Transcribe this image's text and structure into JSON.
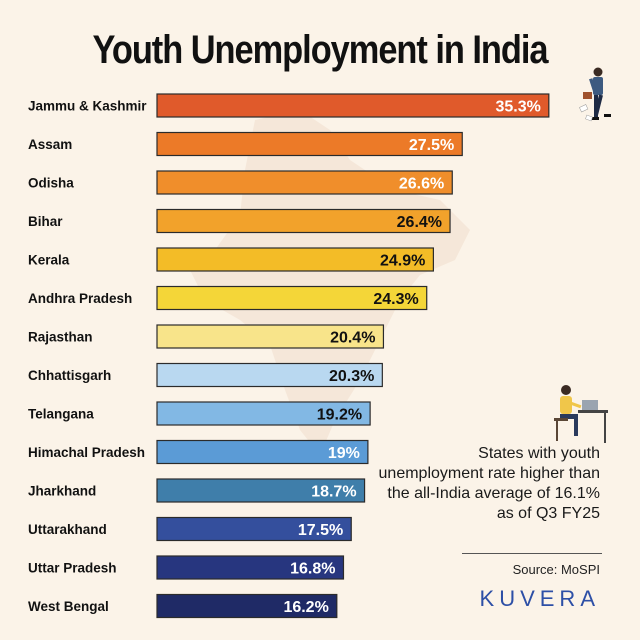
{
  "title": "Youth Unemployment in India",
  "note": "States with youth unemployment rate higher than the all-India average of 16.1% as of Q3 FY25",
  "source": "Source: MoSPI",
  "brand": "KUVERA",
  "colors": {
    "background": "#fbf3e8",
    "brand": "#2d4fa6",
    "bar_outline": "#2b2b2b"
  },
  "chart_data": {
    "type": "bar",
    "orientation": "horizontal",
    "title": "Youth Unemployment in India",
    "xlabel": "",
    "ylabel": "",
    "xlim": [
      0,
      36
    ],
    "grid": false,
    "legend": "none",
    "value_suffix": "%",
    "categories": [
      "Jammu & Kashmir",
      "Assam",
      "Odisha",
      "Bihar",
      "Kerala",
      "Andhra Pradesh",
      "Rajasthan",
      "Chhattisgarh",
      "Telangana",
      "Himachal Pradesh",
      "Jharkhand",
      "Uttarakhand",
      "Uttar Pradesh",
      "West Bengal"
    ],
    "values": [
      35.3,
      27.5,
      26.6,
      26.4,
      24.9,
      24.3,
      20.4,
      20.3,
      19.2,
      19,
      18.7,
      17.5,
      16.8,
      16.2
    ],
    "value_labels": [
      "35.3%",
      "27.5%",
      "26.6%",
      "26.4%",
      "24.9%",
      "24.3%",
      "20.4%",
      "20.3%",
      "19.2%",
      "19%",
      "18.7%",
      "17.5%",
      "16.8%",
      "16.2%"
    ],
    "bar_colors": [
      "#e05a2b",
      "#ec7a28",
      "#f08e2b",
      "#f2a22b",
      "#f3bc27",
      "#f4d638",
      "#f8e48a",
      "#b9d8f0",
      "#82b8e4",
      "#5b9bd6",
      "#3f7eaa",
      "#344f9d",
      "#27367f",
      "#1f2a66"
    ],
    "label_colors": [
      "#ffffff",
      "#ffffff",
      "#ffffff",
      "#111111",
      "#111111",
      "#111111",
      "#111111",
      "#111111",
      "#111111",
      "#ffffff",
      "#ffffff",
      "#ffffff",
      "#ffffff",
      "#ffffff"
    ]
  }
}
